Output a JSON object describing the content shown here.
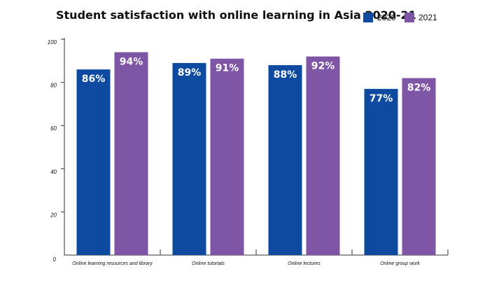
{
  "chart_data": {
    "type": "bar",
    "title": "Student satisfaction with online learning in Asia 2020-21",
    "xlabel": "",
    "ylabel": "",
    "categories": [
      "Online learning resources and library",
      "Online tutorials",
      "Online lectures",
      "Online group work"
    ],
    "series": [
      {
        "name": "2020",
        "color": "#0d4aa0",
        "values": [
          86,
          89,
          88,
          77
        ],
        "labels": [
          "86%",
          "89%",
          "88%",
          "77%"
        ]
      },
      {
        "name": "2021",
        "color": "#7e56a5",
        "values": [
          94,
          91,
          92,
          82
        ],
        "labels": [
          "94%",
          "91%",
          "92%",
          "82%"
        ]
      }
    ],
    "ylim": [
      0,
      100
    ],
    "yticks": [
      0,
      20,
      40,
      60,
      80,
      100
    ],
    "grid": false,
    "legend_position": "top-right"
  }
}
